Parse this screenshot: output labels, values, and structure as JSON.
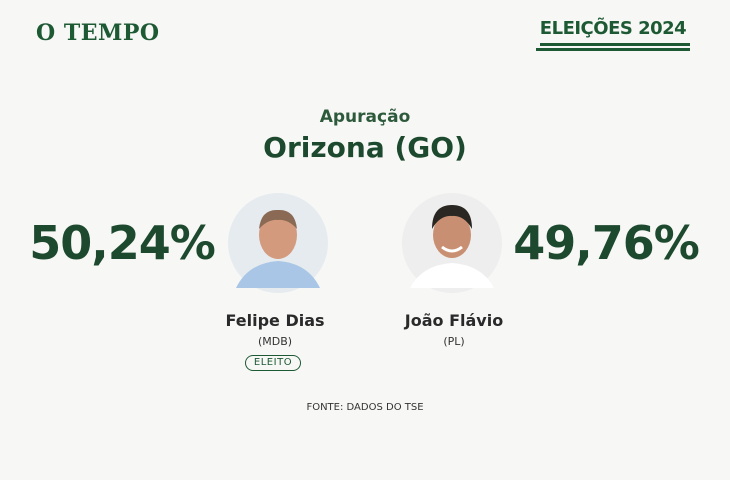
{
  "header": {
    "logo": "O TEMPO",
    "brand": "ELEIÇÕES 2024"
  },
  "subtitle": "Apuração",
  "title": "Orizona (GO)",
  "candidates": [
    {
      "percent": "50,24%",
      "name": "Felipe Dias",
      "party": "(MDB)",
      "status": "ELEITO"
    },
    {
      "percent": "49,76%",
      "name": "João Flávio",
      "party": "(PL)"
    }
  ],
  "source": "FONTE: DADOS DO TSE"
}
